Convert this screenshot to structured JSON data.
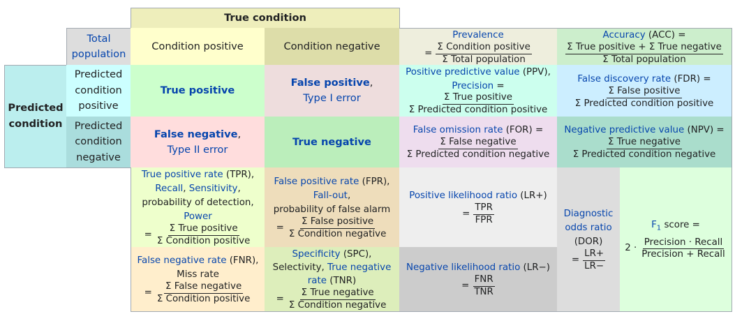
{
  "headers": {
    "true_condition": "True condition",
    "total_population": "Total population",
    "condition_positive": "Condition positive",
    "condition_negative": "Condition negative",
    "predicted_condition": "Predicted condition",
    "predicted_condition_positive": "Predicted condition positive",
    "predicted_condition_negative": "Predicted condition negative"
  },
  "core": {
    "true_positive": "True positive",
    "false_positive": "False positive",
    "type_i_error": "Type I error",
    "false_negative": "False negative",
    "type_ii_error": "Type II error",
    "true_negative": "True negative",
    "comma": ","
  },
  "symbols": {
    "equals": "=",
    "comma": ",",
    "f1_prefix": "2 ·"
  },
  "prevalence": {
    "name": "Prevalence",
    "num": "Σ Condition positive",
    "den": "Σ Total population"
  },
  "accuracy": {
    "name": "Accuracy",
    "abbr": "(ACC) =",
    "num": "Σ True positive + Σ True negative",
    "den": "Σ Total population"
  },
  "ppv": {
    "name": "Positive predictive value",
    "abbr": "(PPV),",
    "alias": "Precision",
    "alias_suffix": "=",
    "num": "Σ True positive",
    "den": "Σ Predicted condition positive"
  },
  "fdr": {
    "name": "False discovery rate",
    "abbr": "(FDR) =",
    "num": "Σ False positive",
    "den": "Σ Predicted condition positive"
  },
  "for": {
    "name": "False omission rate",
    "abbr": "(FOR) =",
    "num": "Σ False negative",
    "den": "Σ Predicted condition negative"
  },
  "npv": {
    "name": "Negative predictive value",
    "abbr": "(NPV) =",
    "num": "Σ True negative",
    "den": "Σ Predicted condition negative"
  },
  "tpr": {
    "name": "True positive rate",
    "abbr": "(TPR),",
    "recall": "Recall",
    "sensitivity": "Sensitivity",
    "detection": "probability of detection,",
    "power": "Power",
    "num": "Σ True positive",
    "den": "Σ Condition positive"
  },
  "fpr": {
    "name": "False positive rate",
    "abbr": "(FPR),",
    "fallout": "Fall-out",
    "false_alarm": "probability of false alarm",
    "num": "Σ False positive",
    "den": "Σ Condition negative"
  },
  "fnr": {
    "name": "False negative rate",
    "abbr": "(FNR),",
    "miss": "Miss rate",
    "num": "Σ False negative",
    "den": "Σ Condition positive"
  },
  "spc": {
    "name": "Specificity",
    "abbr": "(SPC),",
    "selectivity": "Selectivity,",
    "tnr": "True negative rate",
    "tnr_abbr": "(TNR)",
    "num": "Σ True negative",
    "den": "Σ Condition negative"
  },
  "lr_pos": {
    "name": "Positive likelihood ratio",
    "abbr": "(LR+)",
    "num": "TPR",
    "den": "FPR"
  },
  "lr_neg": {
    "name": "Negative likelihood ratio",
    "abbr": "(LR−)",
    "num": "FNR",
    "den": "TNR"
  },
  "dor": {
    "name_line1": "Diagnostic",
    "name_line2": "odds ratio",
    "abbr": "(DOR)",
    "num": "LR+",
    "den": "LR−"
  },
  "f1": {
    "name": "F",
    "sub": "1",
    "suffix": "score =",
    "num": "Precision · Recall",
    "den": "Precision + Recall"
  },
  "colors": {
    "true_condition": "#eeeebb",
    "total_population": "#dddddd",
    "condition_positive": "#ffffcc",
    "condition_negative": "#dddda9",
    "predicted_condition": "#bbeeee",
    "predicted_positive": "#ccffff",
    "predicted_negative": "#aadddd",
    "true_positive": "#ccffcc",
    "false_positive": "#eedddd",
    "false_negative": "#ffdddd",
    "true_negative": "#bbeebb",
    "prevalence": "#eeeedd",
    "accuracy": "#cceecc",
    "ppv": "#ccffee",
    "fdr": "#cceeff",
    "for": "#eeddee",
    "npv": "#aaddcc",
    "tpr": "#eeffcc",
    "fpr": "#eeddbb",
    "fnr": "#ffeecc",
    "spc": "#ddeebb",
    "lr_pos": "#eeeeee",
    "lr_neg": "#cccccc",
    "dor": "#dddddd",
    "f1": "#ddffdd"
  }
}
